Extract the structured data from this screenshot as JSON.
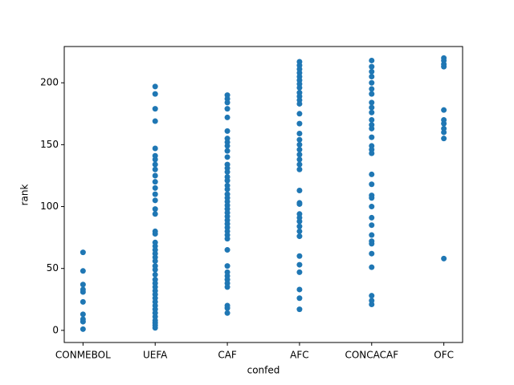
{
  "chart_data": {
    "type": "scatter",
    "xlabel": "confed",
    "ylabel": "rank",
    "categories": [
      "CONMEBOL",
      "UEFA",
      "CAF",
      "AFC",
      "CONCACAF",
      "OFC"
    ],
    "xlim": [
      -0.26,
      5.26
    ],
    "ylim": [
      -9.8,
      229.3
    ],
    "yticks": [
      0,
      50,
      100,
      150,
      200
    ],
    "series": [
      {
        "color": "#1f77b4",
        "x": [
          "CONMEBOL",
          "CONMEBOL",
          "CONMEBOL",
          "CONMEBOL",
          "CONMEBOL",
          "CONMEBOL",
          "CONMEBOL",
          "CONMEBOL",
          "CONMEBOL",
          "CONMEBOL",
          "UEFA",
          "UEFA",
          "UEFA",
          "UEFA",
          "UEFA",
          "UEFA",
          "UEFA",
          "UEFA",
          "UEFA",
          "UEFA",
          "UEFA",
          "UEFA",
          "UEFA",
          "UEFA",
          "UEFA",
          "UEFA",
          "UEFA",
          "UEFA",
          "UEFA",
          "UEFA",
          "UEFA",
          "UEFA",
          "UEFA",
          "UEFA",
          "UEFA",
          "UEFA",
          "UEFA",
          "UEFA",
          "UEFA",
          "UEFA",
          "UEFA",
          "UEFA",
          "UEFA",
          "UEFA",
          "UEFA",
          "UEFA",
          "UEFA",
          "UEFA",
          "UEFA",
          "UEFA",
          "UEFA",
          "UEFA",
          "CAF",
          "CAF",
          "CAF",
          "CAF",
          "CAF",
          "CAF",
          "CAF",
          "CAF",
          "CAF",
          "CAF",
          "CAF",
          "CAF",
          "CAF",
          "CAF",
          "CAF",
          "CAF",
          "CAF",
          "CAF",
          "CAF",
          "CAF",
          "CAF",
          "CAF",
          "CAF",
          "CAF",
          "CAF",
          "CAF",
          "CAF",
          "CAF",
          "CAF",
          "CAF",
          "CAF",
          "CAF",
          "CAF",
          "CAF",
          "CAF",
          "CAF",
          "CAF",
          "CAF",
          "CAF",
          "CAF",
          "CAF",
          "AFC",
          "AFC",
          "AFC",
          "AFC",
          "AFC",
          "AFC",
          "AFC",
          "AFC",
          "AFC",
          "AFC",
          "AFC",
          "AFC",
          "AFC",
          "AFC",
          "AFC",
          "AFC",
          "AFC",
          "AFC",
          "AFC",
          "AFC",
          "AFC",
          "AFC",
          "AFC",
          "AFC",
          "AFC",
          "AFC",
          "AFC",
          "AFC",
          "AFC",
          "AFC",
          "AFC",
          "AFC",
          "AFC",
          "AFC",
          "AFC",
          "AFC",
          "AFC",
          "CONCACAF",
          "CONCACAF",
          "CONCACAF",
          "CONCACAF",
          "CONCACAF",
          "CONCACAF",
          "CONCACAF",
          "CONCACAF",
          "CONCACAF",
          "CONCACAF",
          "CONCACAF",
          "CONCACAF",
          "CONCACAF",
          "CONCACAF",
          "CONCACAF",
          "CONCACAF",
          "CONCACAF",
          "CONCACAF",
          "CONCACAF",
          "CONCACAF",
          "CONCACAF",
          "CONCACAF",
          "CONCACAF",
          "CONCACAF",
          "CONCACAF",
          "CONCACAF",
          "CONCACAF",
          "CONCACAF",
          "CONCACAF",
          "CONCACAF",
          "CONCACAF",
          "CONCACAF",
          "OFC",
          "OFC",
          "OFC",
          "OFC",
          "OFC",
          "OFC",
          "OFC",
          "OFC",
          "OFC",
          "OFC",
          "OFC"
        ],
        "values": [
          63,
          48,
          37,
          33,
          31,
          23,
          13,
          9,
          7,
          1,
          197,
          191,
          179,
          169,
          147,
          141,
          138,
          134,
          130,
          125,
          120,
          115,
          110,
          105,
          98,
          94,
          80,
          78,
          71,
          68,
          65,
          62,
          59,
          56,
          52,
          49,
          45,
          41,
          38,
          35,
          32,
          29,
          26,
          23,
          20,
          17,
          14,
          11,
          8,
          6,
          4,
          2,
          190,
          187,
          184,
          179,
          172,
          161,
          155,
          152,
          149,
          145,
          140,
          134,
          131,
          128,
          124,
          121,
          117,
          114,
          110,
          107,
          104,
          101,
          98,
          95,
          92,
          89,
          86,
          83,
          80,
          77,
          74,
          65,
          52,
          47,
          44,
          41,
          38,
          35,
          20,
          18,
          14,
          217,
          214,
          211,
          208,
          205,
          202,
          199,
          196,
          192,
          189,
          186,
          183,
          175,
          167,
          159,
          154,
          150,
          146,
          142,
          138,
          134,
          130,
          113,
          103,
          102,
          94,
          91,
          88,
          84,
          80,
          76,
          60,
          53,
          47,
          33,
          26,
          17,
          218,
          213,
          209,
          205,
          200,
          195,
          191,
          184,
          180,
          176,
          170,
          166,
          163,
          156,
          149,
          146,
          143,
          126,
          118,
          109,
          107,
          100,
          91,
          85,
          77,
          72,
          70,
          62,
          51,
          28,
          24,
          21,
          220,
          218,
          215,
          213,
          178,
          170,
          167,
          163,
          160,
          155,
          58
        ]
      }
    ]
  }
}
